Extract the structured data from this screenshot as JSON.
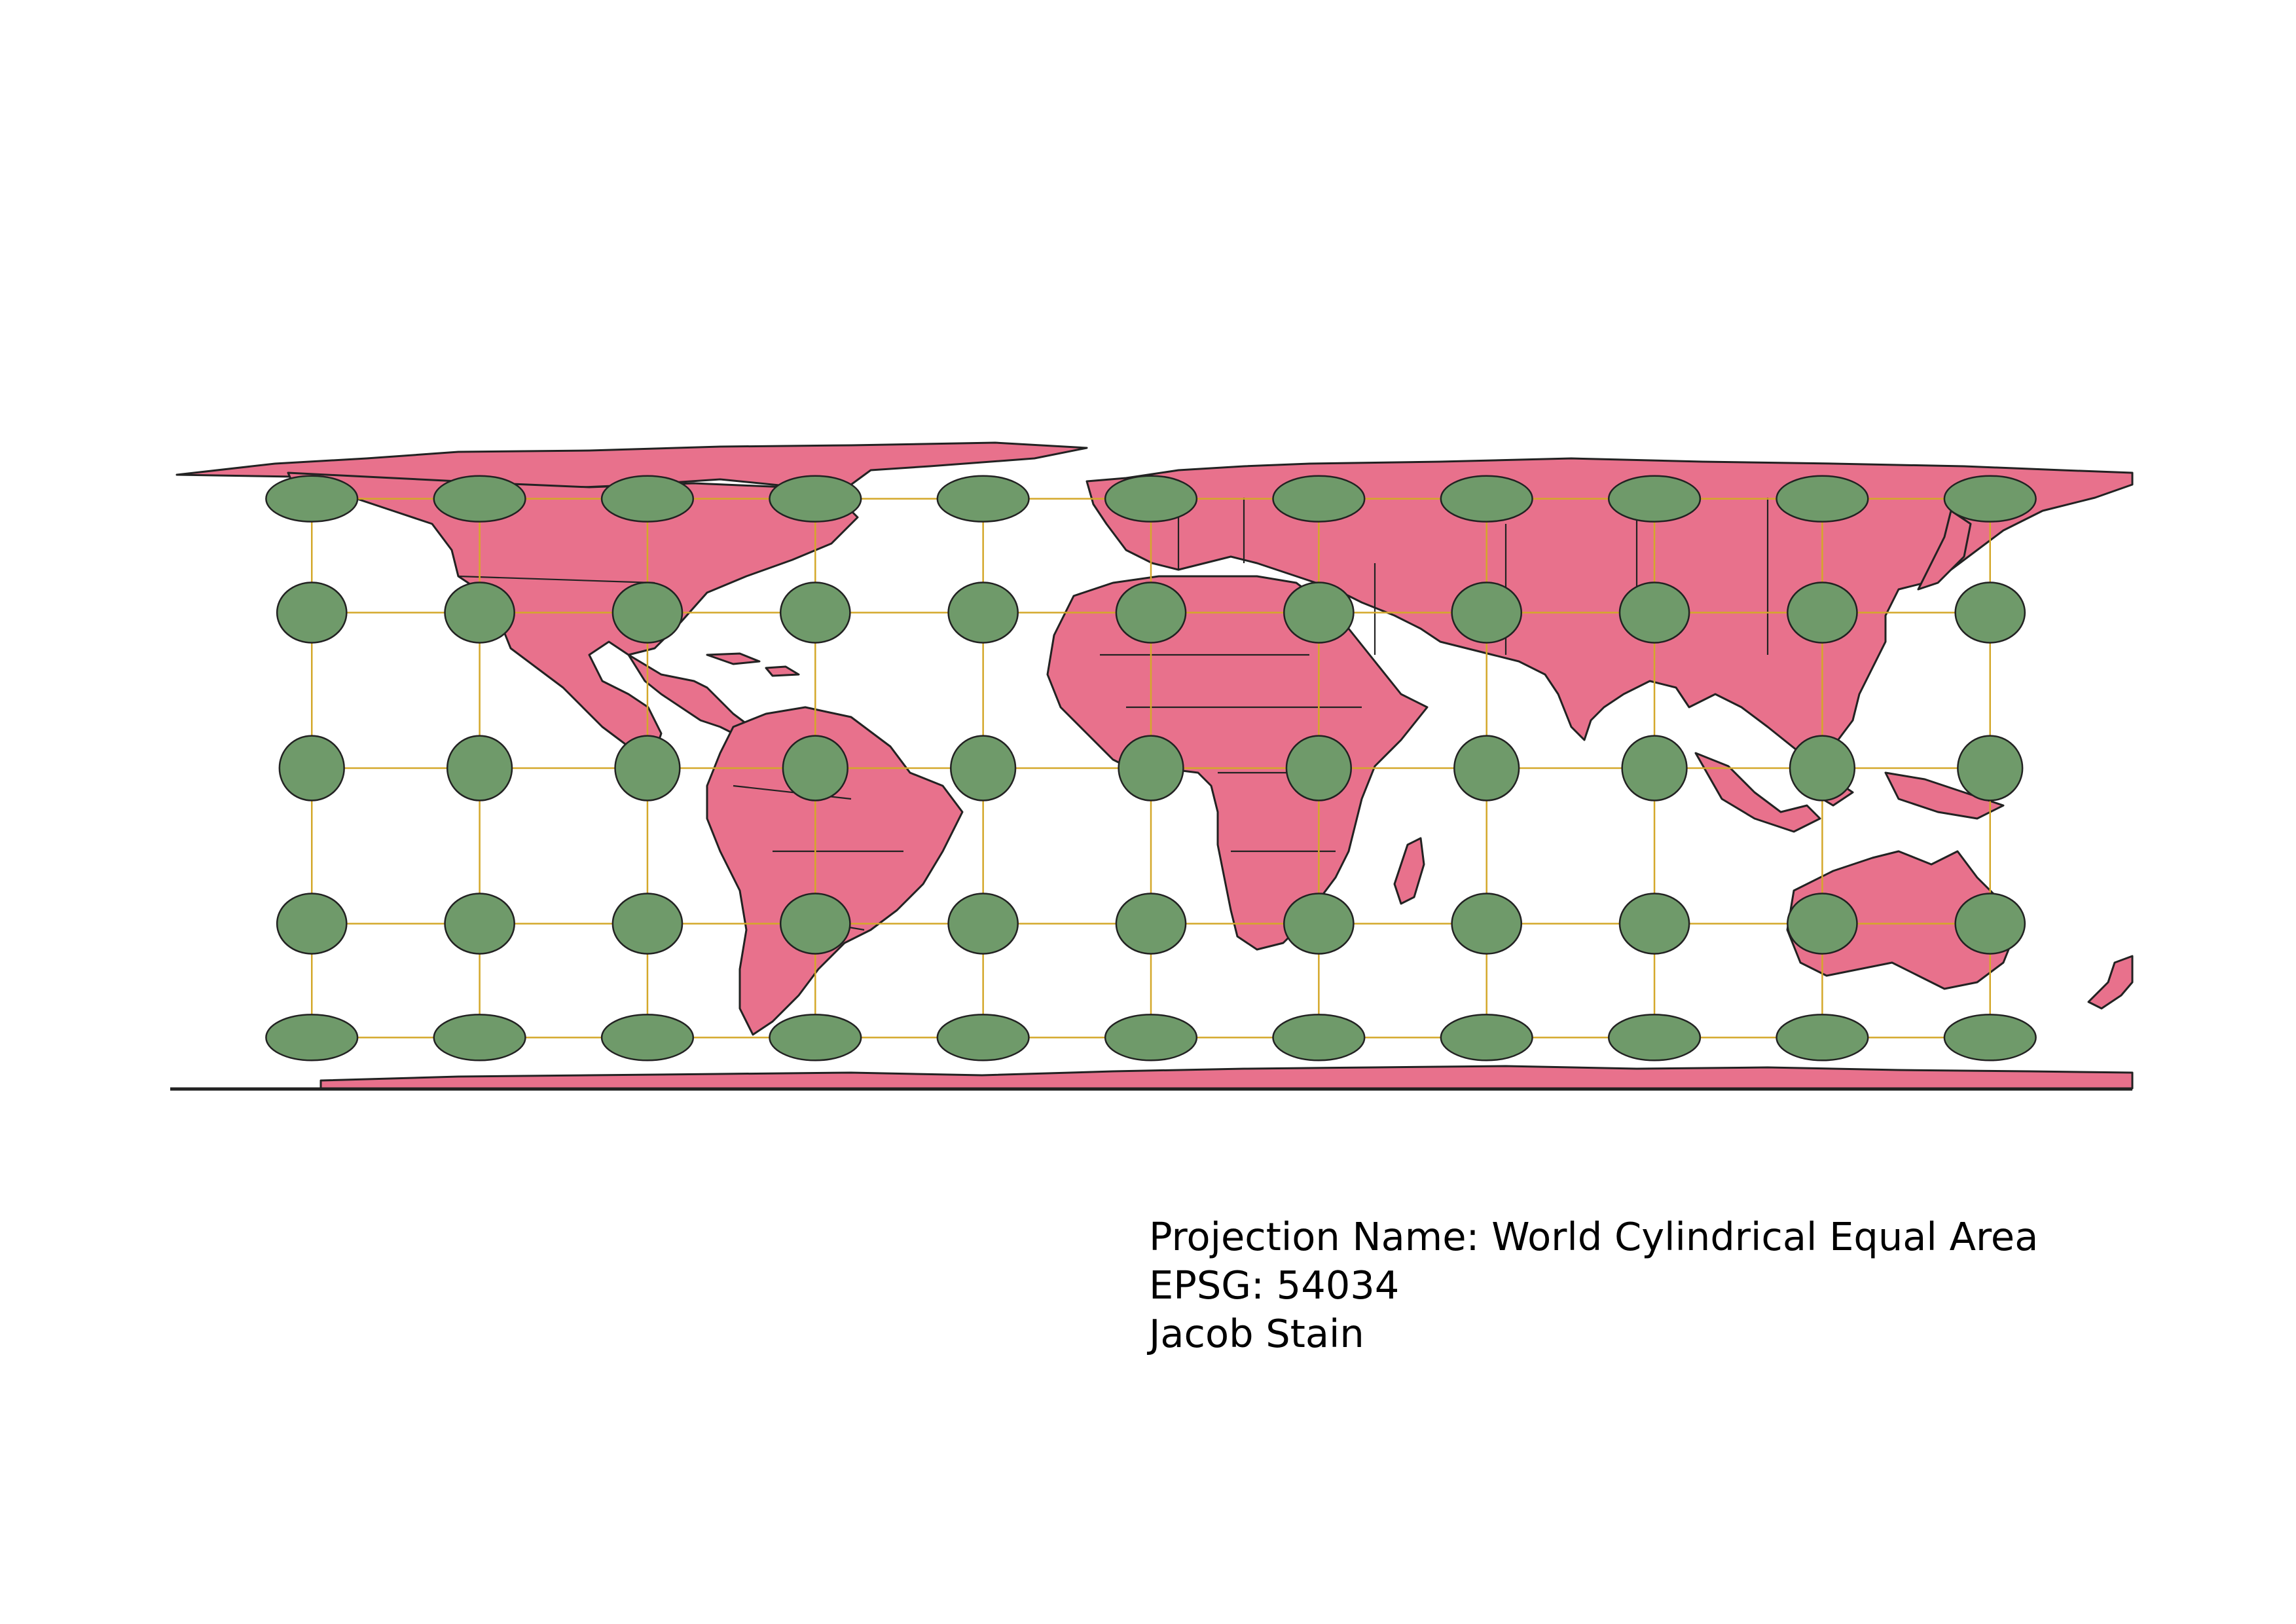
{
  "legend": {
    "projection": "Projection Name: World Cylindrical Equal Area",
    "epsg": "EPSG: 54034",
    "author": "Jacob Stain"
  },
  "map": {
    "colors": {
      "land": "#e8718c",
      "tissot_fill": "#6f9a6a",
      "graticule": "#d4a82a",
      "outline": "#222222"
    },
    "graticule": {
      "longitudes": [
        -150,
        -120,
        -90,
        -60,
        -30,
        0,
        30,
        60,
        90,
        120,
        150
      ],
      "latitudes": [
        -60,
        -30,
        0,
        30,
        60
      ]
    },
    "tissot_indicatrix": {
      "longitudes": [
        -150,
        -120,
        -90,
        -60,
        -30,
        0,
        30,
        60,
        90,
        120,
        150
      ],
      "latitudes": [
        -60,
        -30,
        0,
        30,
        60
      ]
    }
  }
}
